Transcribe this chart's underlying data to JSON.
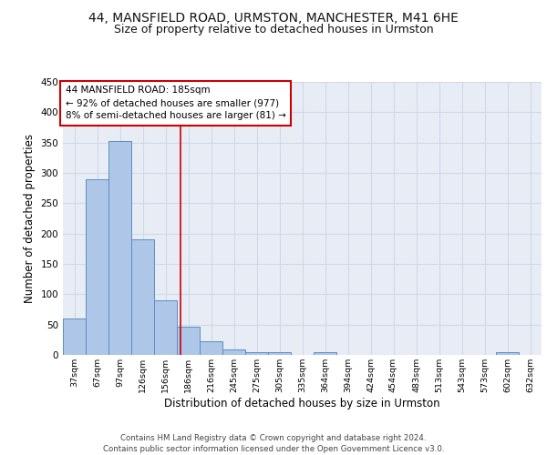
{
  "title": "44, MANSFIELD ROAD, URMSTON, MANCHESTER, M41 6HE",
  "subtitle": "Size of property relative to detached houses in Urmston",
  "xlabel": "Distribution of detached houses by size in Urmston",
  "ylabel": "Number of detached properties",
  "bar_color": "#aec6e8",
  "bar_edge_color": "#5a8fc2",
  "categories": [
    "37sqm",
    "67sqm",
    "97sqm",
    "126sqm",
    "156sqm",
    "186sqm",
    "216sqm",
    "245sqm",
    "275sqm",
    "305sqm",
    "335sqm",
    "364sqm",
    "394sqm",
    "424sqm",
    "454sqm",
    "483sqm",
    "513sqm",
    "543sqm",
    "573sqm",
    "602sqm",
    "632sqm"
  ],
  "values": [
    60,
    290,
    353,
    191,
    90,
    46,
    22,
    9,
    5,
    5,
    0,
    5,
    0,
    0,
    0,
    0,
    0,
    0,
    0,
    4,
    0
  ],
  "annotation_text": "44 MANSFIELD ROAD: 185sqm\n← 92% of detached houses are smaller (977)\n8% of semi-detached houses are larger (81) →",
  "annotation_box_color": "#ffffff",
  "annotation_box_edge": "#cc0000",
  "vline_x": 4.67,
  "vline_color": "#cc0000",
  "ylim": [
    0,
    450
  ],
  "yticks": [
    0,
    50,
    100,
    150,
    200,
    250,
    300,
    350,
    400,
    450
  ],
  "grid_color": "#d0d8e8",
  "background_color": "#e8edf5",
  "footer": "Contains HM Land Registry data © Crown copyright and database right 2024.\nContains public sector information licensed under the Open Government Licence v3.0.",
  "title_fontsize": 10,
  "subtitle_fontsize": 9,
  "ylabel_fontsize": 8.5,
  "xlabel_fontsize": 8.5,
  "annot_fontsize": 7.5,
  "footer_fontsize": 6.2
}
